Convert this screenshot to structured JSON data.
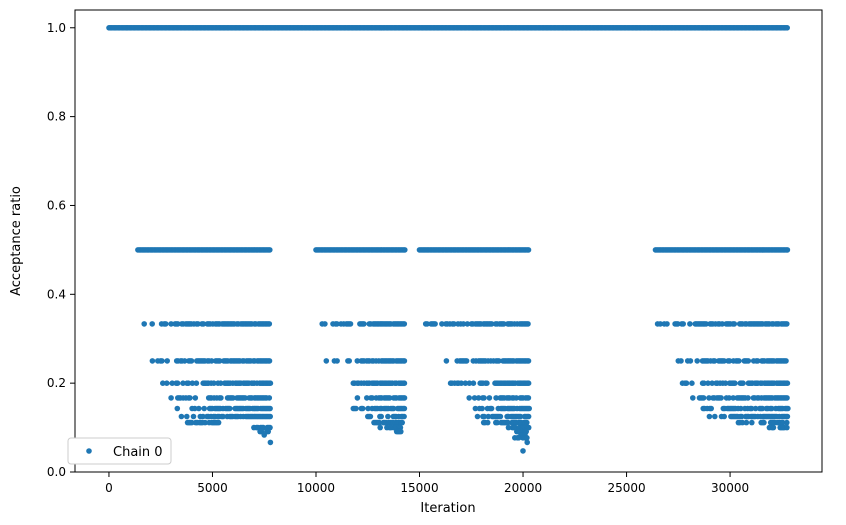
{
  "chart_data": {
    "type": "scatter",
    "title": "",
    "xlabel": "Iteration",
    "ylabel": "Acceptance ratio",
    "xlim": [
      -1640,
      34440
    ],
    "ylim": [
      0,
      1.04
    ],
    "xticks": [
      0,
      5000,
      10000,
      15000,
      20000,
      25000,
      30000
    ],
    "xtick_labels": [
      "0",
      "5000",
      "10000",
      "15000",
      "20000",
      "25000",
      "30000"
    ],
    "yticks": [
      0.0,
      0.2,
      0.4,
      0.6,
      0.8,
      1.0
    ],
    "ytick_labels": [
      "0.0",
      "0.2",
      "0.4",
      "0.6",
      "0.8",
      "1.0"
    ],
    "grid": false,
    "legend": {
      "position": "lower-left",
      "entries": [
        "Chain 0"
      ]
    },
    "color": "#1f77b4",
    "series": [
      {
        "name": "Chain 0",
        "marker": "circle",
        "levels": [
          {
            "y": 1.0,
            "ranges": [
              [
                0,
                32768
              ]
            ]
          },
          {
            "y": 0.5,
            "ranges": [
              [
                1400,
                7800
              ],
              [
                10000,
                14300
              ],
              [
                15000,
                20300
              ],
              [
                26400,
                32800
              ]
            ]
          },
          {
            "y": 0.3333,
            "ranges": [
              [
                1700,
                7800
              ],
              [
                10300,
                14300
              ],
              [
                15300,
                20300
              ],
              [
                26500,
                32800
              ]
            ]
          },
          {
            "y": 0.25,
            "ranges": [
              [
                2100,
                7800
              ],
              [
                10500,
                14300
              ],
              [
                16300,
                20300
              ],
              [
                27500,
                32800
              ]
            ]
          },
          {
            "y": 0.2,
            "ranges": [
              [
                2600,
                7800
              ],
              [
                11800,
                14300
              ],
              [
                16500,
                20300
              ],
              [
                27700,
                32800
              ]
            ]
          },
          {
            "y": 0.1667,
            "ranges": [
              [
                3000,
                7800
              ],
              [
                12000,
                14300
              ],
              [
                17400,
                20300
              ],
              [
                28200,
                32800
              ]
            ]
          },
          {
            "y": 0.1429,
            "ranges": [
              [
                3300,
                7800
              ],
              [
                11800,
                14300
              ],
              [
                17700,
                20300
              ],
              [
                28700,
                32800
              ]
            ]
          },
          {
            "y": 0.125,
            "ranges": [
              [
                3500,
                7800
              ],
              [
                12500,
                14300
              ],
              [
                17800,
                20300
              ],
              [
                29000,
                32800
              ]
            ]
          },
          {
            "y": 0.1111,
            "ranges": [
              [
                3800,
                5300
              ],
              [
                12800,
                14200
              ],
              [
                18100,
                20300
              ],
              [
                30400,
                32800
              ]
            ]
          },
          {
            "y": 0.1,
            "ranges": [
              [
                7000,
                7800
              ],
              [
                13100,
                14100
              ],
              [
                19300,
                20300
              ],
              [
                31900,
                32800
              ]
            ]
          },
          {
            "y": 0.0909,
            "ranges": [
              [
                7300,
                7700
              ],
              [
                13900,
                14100
              ],
              [
                19700,
                20200
              ]
            ]
          },
          {
            "y": 0.0833,
            "ranges": [
              [
                7500,
                7500
              ],
              [
                19900,
                20100
              ]
            ]
          },
          {
            "y": 0.0769,
            "ranges": [
              [
                19600,
                20200
              ]
            ]
          },
          {
            "y": 0.0667,
            "ranges": [
              [
                7800,
                7800
              ],
              [
                20200,
                20200
              ]
            ]
          },
          {
            "y": 0.0476,
            "ranges": [
              [
                20000,
                20000
              ]
            ]
          }
        ]
      }
    ]
  }
}
